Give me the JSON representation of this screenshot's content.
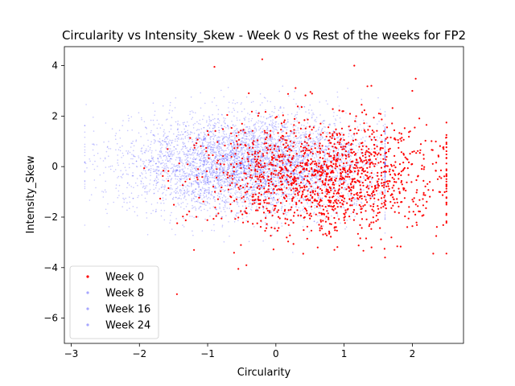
{
  "chart_data": {
    "type": "scatter",
    "title": "Circularity vs Intensity_Skew - Week 0 vs Rest of the weeks for FP2",
    "xlabel": "Circularity",
    "ylabel": "Intensity_Skew",
    "xlim": [
      -3.1,
      2.75
    ],
    "ylim": [
      -7.0,
      4.75
    ],
    "xticks": [
      -3,
      -2,
      -1,
      0,
      1,
      2
    ],
    "yticks": [
      4,
      2,
      0,
      -2,
      -4,
      -6
    ],
    "xtick_labels": [
      "−3",
      "−2",
      "−1",
      "0",
      "1",
      "2"
    ],
    "ytick_labels": [
      "4",
      "2",
      "0",
      "−2",
      "−4",
      "−6"
    ],
    "legend_position": "lower-left",
    "grid": false,
    "series": [
      {
        "name": "Week 0",
        "color": "#ff0000",
        "marker_opacity": 1.0,
        "n_points": 1500,
        "x_center": 0.7,
        "x_spread": 0.9,
        "y_center": -0.4,
        "y_spread": 1.1,
        "x_range": [
          -2.75,
          2.5
        ],
        "y_range": [
          -5.1,
          4.25
        ],
        "notable_points": [
          {
            "x": -0.2,
            "y": 4.25
          },
          {
            "x": -1.45,
            "y": -5.05
          },
          {
            "x": -0.55,
            "y": -4.05
          },
          {
            "x": 1.15,
            "y": 4.0
          },
          {
            "x": -0.9,
            "y": 3.95
          },
          {
            "x": 1.4,
            "y": 3.2
          },
          {
            "x": 2.0,
            "y": 3.0
          },
          {
            "x": 0.4,
            "y": -3.45
          },
          {
            "x": -1.2,
            "y": -3.3
          },
          {
            "x": 2.4,
            "y": -0.4
          },
          {
            "x": 2.35,
            "y": -2.75
          },
          {
            "x": 1.6,
            "y": -3.6
          }
        ]
      },
      {
        "name": "Week 8",
        "color": "#0000ff",
        "marker_opacity": 0.22,
        "n_points": 1800,
        "x_center": -0.5,
        "x_spread": 0.9,
        "y_center": 0.2,
        "y_spread": 0.9,
        "x_range": [
          -2.8,
          1.6
        ],
        "y_range": [
          -6.4,
          4.2
        ]
      },
      {
        "name": "Week 16",
        "color": "#0000ff",
        "marker_opacity": 0.22,
        "n_points": 1800,
        "x_center": -0.3,
        "x_spread": 0.95,
        "y_center": 0.1,
        "y_spread": 0.95,
        "x_range": [
          -2.8,
          1.6
        ],
        "y_range": [
          -6.4,
          4.2
        ]
      },
      {
        "name": "Week 24",
        "color": "#0000ff",
        "marker_opacity": 0.22,
        "n_points": 1800,
        "x_center": -0.1,
        "x_spread": 0.9,
        "y_center": 0.0,
        "y_spread": 1.0,
        "x_range": [
          -2.8,
          1.6
        ],
        "y_range": [
          -6.4,
          4.2
        ]
      }
    ]
  }
}
